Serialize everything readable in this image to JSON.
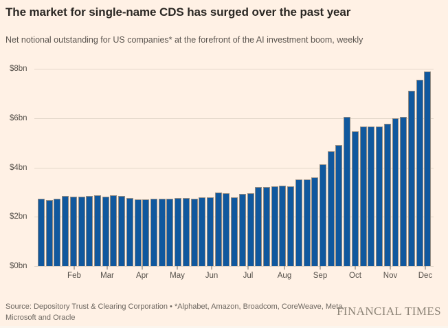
{
  "colors": {
    "background": "#FFF1E5",
    "bar": "#10589E",
    "gridline": "#e2d6c9",
    "text_dark": "#2b2824",
    "text_muted": "#5c5650",
    "axis_label": "#55504a",
    "brand": "#8d8477"
  },
  "chart_data": {
    "type": "bar",
    "title": "The market for single-name CDS has surged over the past year",
    "subtitle": "Net notional outstanding for US companies* at the forefront of the AI investment boom, weekly",
    "unit": "$bn",
    "frequency": "weekly",
    "ylabel": "",
    "xlabel": "",
    "ylim": [
      0,
      8
    ],
    "grid": "horizontal",
    "legend_position": "none",
    "y_ticks": [
      {
        "value": 0,
        "label": "$0bn"
      },
      {
        "value": 2,
        "label": "$2bn"
      },
      {
        "value": 4,
        "label": "$4bn"
      },
      {
        "value": 6,
        "label": "$6bn"
      },
      {
        "value": 8,
        "label": "$8bn"
      }
    ],
    "x_ticks": [
      {
        "label": "Feb",
        "pos_pct": 9.98
      },
      {
        "label": "Mar",
        "pos_pct": 18.24
      },
      {
        "label": "Apr",
        "pos_pct": 27.02
      },
      {
        "label": "May",
        "pos_pct": 35.8
      },
      {
        "label": "Jun",
        "pos_pct": 44.41
      },
      {
        "label": "Jul",
        "pos_pct": 53.53
      },
      {
        "label": "Aug",
        "pos_pct": 62.65
      },
      {
        "label": "Sep",
        "pos_pct": 71.6
      },
      {
        "label": "Oct",
        "pos_pct": 80.38
      },
      {
        "label": "Nov",
        "pos_pct": 89.16
      },
      {
        "label": "Dec",
        "pos_pct": 97.93
      }
    ],
    "values": [
      2.72,
      2.68,
      2.74,
      2.84,
      2.82,
      2.82,
      2.84,
      2.87,
      2.82,
      2.88,
      2.85,
      2.76,
      2.7,
      2.7,
      2.72,
      2.72,
      2.74,
      2.76,
      2.75,
      2.72,
      2.8,
      2.8,
      2.99,
      2.95,
      2.8,
      2.92,
      2.96,
      3.21,
      3.2,
      3.23,
      3.26,
      3.23,
      3.5,
      3.52,
      3.6,
      4.12,
      4.65,
      4.92,
      6.06,
      5.45,
      5.65,
      5.67,
      5.65,
      5.76,
      5.98,
      6.06,
      7.12,
      7.55,
      7.88
    ]
  },
  "footer": {
    "source_lines": [
      "Source: Depository Trust & Clearing Corporation • *Alphabet, Amazon, Broadcom, CoreWeave, Meta,",
      "Microsoft and Oracle"
    ],
    "brand": "FINANCIAL TIMES"
  }
}
